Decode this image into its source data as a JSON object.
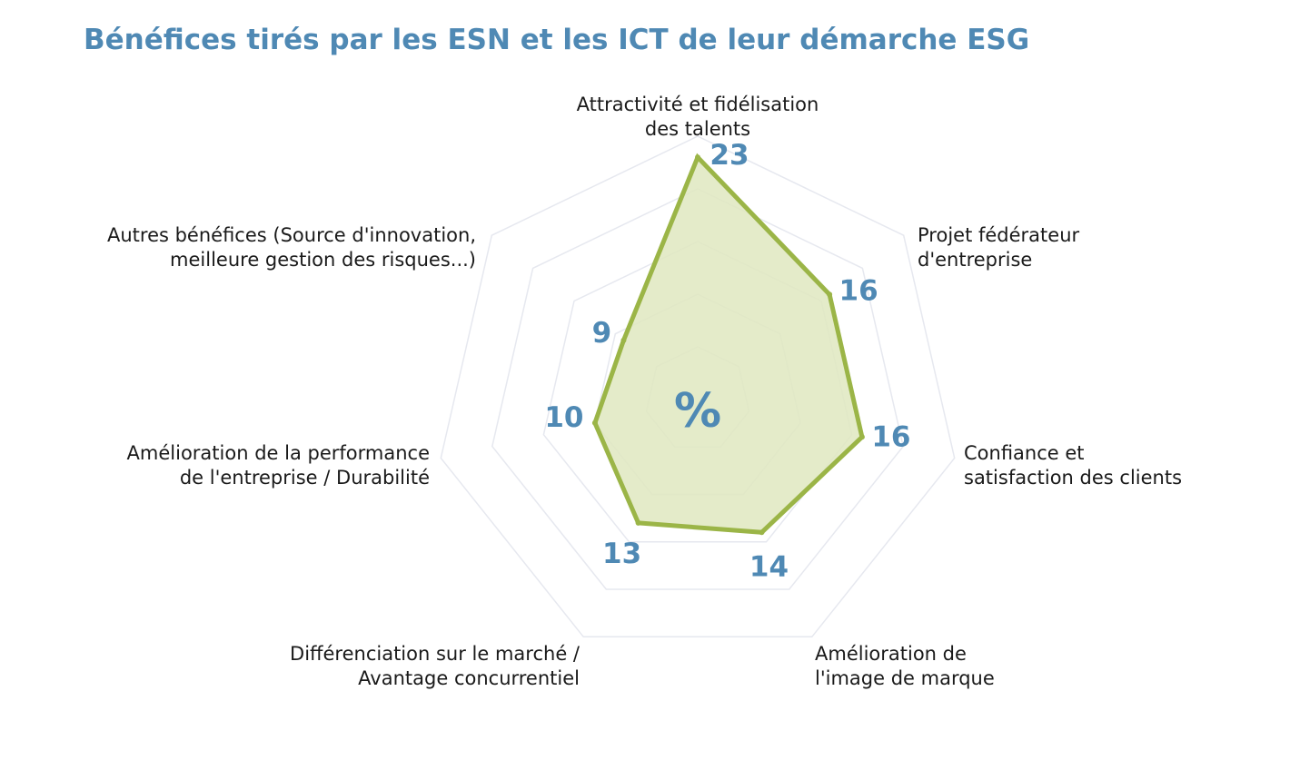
{
  "chart_data": {
    "type": "radar",
    "title": "Bénéfices tirés par les ESN et les ICT de leur démarche ESG",
    "unit": "%",
    "categories": [
      [
        "Attractivité et fidélisation",
        "des talents"
      ],
      [
        "Projet fédérateur",
        "d'entreprise"
      ],
      [
        "Confiance et",
        "satisfaction des clients"
      ],
      [
        "Amélioration de",
        "l'image de marque"
      ],
      [
        "Différenciation sur le marché /",
        "Avantage concurrentiel"
      ],
      [
        "Amélioration de la performance",
        "de l'entreprise / Durabilité"
      ],
      [
        "Autres bénéfices (Source d'innovation,",
        "meilleure gestion des risques...)"
      ]
    ],
    "values": [
      23,
      16,
      16,
      14,
      13,
      10,
      9
    ],
    "rlim": [
      0,
      25
    ],
    "grid": true,
    "colors": {
      "line": "#9bb547",
      "fill": "#dfe7bf",
      "grid": "#e6e8ef",
      "value": "#4f89b4"
    }
  }
}
